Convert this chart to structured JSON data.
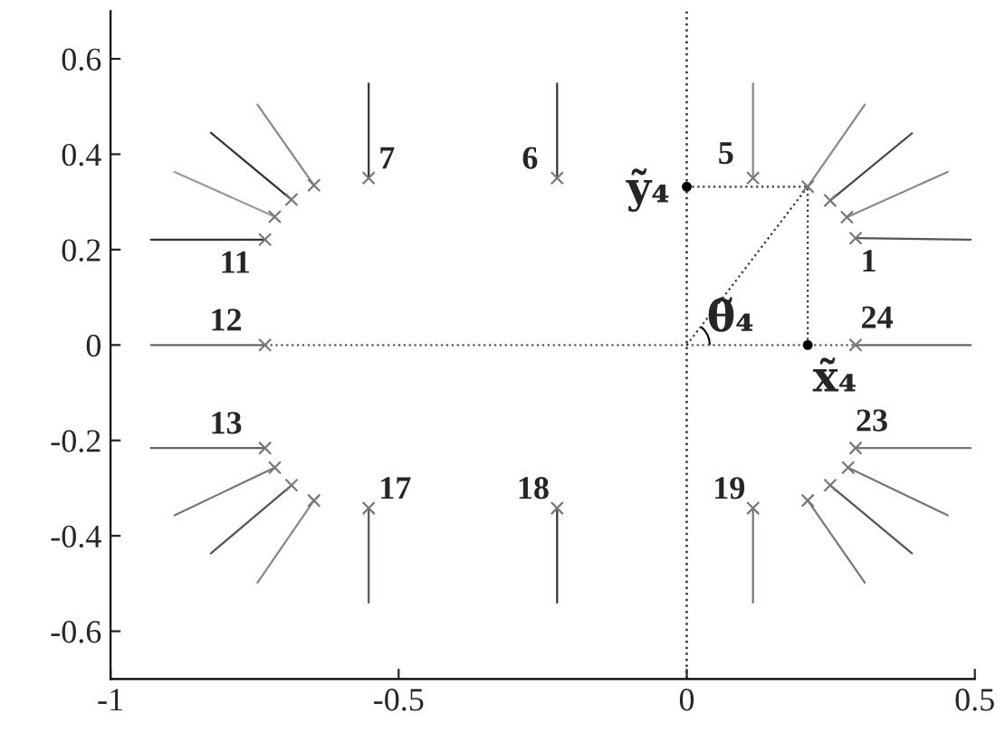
{
  "chart_data": {
    "type": "scatter",
    "xlim": [
      -1,
      0.5
    ],
    "ylim": [
      -0.7,
      0.7
    ],
    "xticks": [
      -1,
      -0.5,
      0,
      0.5
    ],
    "yticks": [
      -0.6,
      -0.4,
      -0.2,
      0,
      0.2,
      0.4,
      0.6
    ],
    "grid": false,
    "legend": false,
    "ref_lines": [
      {
        "axis": "x",
        "value": 0,
        "line_style": "dotted",
        "color": "#333333"
      }
    ],
    "annotations": [
      {
        "text": "ỹ₄",
        "x": 0,
        "y": 0.332
      },
      {
        "text": "x̃₄",
        "x": 0.21,
        "y": 0
      },
      {
        "text": "θ̃₄",
        "x": 0,
        "y": 0
      },
      {
        "text": "1",
        "x": 0.293,
        "y": 0.224
      },
      {
        "text": "5",
        "x": 0.115,
        "y": 0.35
      },
      {
        "text": "6",
        "x": -0.225,
        "y": 0.35
      },
      {
        "text": "7",
        "x": -0.552,
        "y": 0.35
      },
      {
        "text": "11",
        "x": -0.732,
        "y": 0.221
      },
      {
        "text": "12",
        "x": -0.732,
        "y": 0
      },
      {
        "text": "13",
        "x": -0.732,
        "y": -0.216
      },
      {
        "text": "17",
        "x": -0.552,
        "y": -0.342
      },
      {
        "text": "18",
        "x": -0.225,
        "y": -0.342
      },
      {
        "text": "19",
        "x": 0.115,
        "y": -0.342
      },
      {
        "text": "23",
        "x": 0.293,
        "y": -0.216
      },
      {
        "text": "24",
        "x": 0.293,
        "y": 0
      }
    ],
    "series": [
      {
        "type": "line",
        "color": "#555555",
        "x": [
          0.293,
          0.493
        ],
        "values": [
          0.224,
          0.221
        ]
      },
      {
        "type": "line",
        "color": "#888888",
        "x": [
          0.278,
          0.453
        ],
        "values": [
          0.268,
          0.363
        ]
      },
      {
        "type": "line",
        "color": "#444444",
        "x": [
          0.249,
          0.391
        ],
        "values": [
          0.303,
          0.444
        ]
      },
      {
        "type": "line",
        "color": "#888888",
        "x": [
          0.21,
          0.309
        ],
        "values": [
          0.332,
          0.504
        ]
      },
      {
        "type": "line",
        "color": "#888888",
        "x": [
          0.115,
          0.115
        ],
        "values": [
          0.35,
          0.548
        ]
      },
      {
        "type": "line",
        "color": "#333333",
        "x": [
          -0.225,
          -0.225
        ],
        "values": [
          0.35,
          0.548
        ]
      },
      {
        "type": "line",
        "color": "#333333",
        "x": [
          -0.552,
          -0.552
        ],
        "values": [
          0.35,
          0.548
        ]
      },
      {
        "type": "line",
        "color": "#888888",
        "x": [
          -0.647,
          -0.745
        ],
        "values": [
          0.335,
          0.504
        ]
      },
      {
        "type": "line",
        "color": "#333333",
        "x": [
          -0.686,
          -0.826
        ],
        "values": [
          0.305,
          0.445
        ]
      },
      {
        "type": "line",
        "color": "#999999",
        "x": [
          -0.715,
          -0.889
        ],
        "values": [
          0.269,
          0.363
        ]
      },
      {
        "type": "line",
        "color": "#333333",
        "x": [
          -0.732,
          -0.93
        ],
        "values": [
          0.221,
          0.221
        ]
      },
      {
        "type": "line",
        "color": "#666666",
        "x": [
          -0.732,
          -0.93
        ],
        "values": [
          0,
          0
        ]
      },
      {
        "type": "line",
        "color": "#666666",
        "x": [
          -0.732,
          -0.93
        ],
        "values": [
          -0.216,
          -0.216
        ]
      },
      {
        "type": "line",
        "color": "#777777",
        "x": [
          -0.715,
          -0.889
        ],
        "values": [
          -0.257,
          -0.357
        ]
      },
      {
        "type": "line",
        "color": "#555555",
        "x": [
          -0.686,
          -0.826
        ],
        "values": [
          -0.294,
          -0.437
        ]
      },
      {
        "type": "line",
        "color": "#888888",
        "x": [
          -0.647,
          -0.745
        ],
        "values": [
          -0.326,
          -0.498
        ]
      },
      {
        "type": "line",
        "color": "#555555",
        "x": [
          -0.552,
          -0.552
        ],
        "values": [
          -0.342,
          -0.54
        ]
      },
      {
        "type": "line",
        "color": "#333333",
        "x": [
          -0.225,
          -0.225
        ],
        "values": [
          -0.342,
          -0.54
        ]
      },
      {
        "type": "line",
        "color": "#777777",
        "x": [
          0.115,
          0.115
        ],
        "values": [
          -0.342,
          -0.54
        ]
      },
      {
        "type": "line",
        "color": "#777777",
        "x": [
          0.21,
          0.309
        ],
        "values": [
          -0.326,
          -0.498
        ]
      },
      {
        "type": "line",
        "color": "#555555",
        "x": [
          0.249,
          0.391
        ],
        "values": [
          -0.294,
          -0.437
        ]
      },
      {
        "type": "line",
        "color": "#777777",
        "x": [
          0.28,
          0.453
        ],
        "values": [
          -0.257,
          -0.357
        ]
      },
      {
        "type": "line",
        "color": "#777777",
        "x": [
          0.293,
          0.493
        ],
        "values": [
          -0.216,
          -0.216
        ]
      },
      {
        "type": "line",
        "color": "#666666",
        "x": [
          0.293,
          0.493
        ],
        "values": [
          0,
          0
        ]
      },
      {
        "type": "line",
        "color": "#555555",
        "line_style": "dotted",
        "x": [
          -0.732,
          0.293
        ],
        "values": [
          0,
          0
        ]
      },
      {
        "type": "line",
        "color": "#333333",
        "line_style": "dotted",
        "x": [
          0,
          0.21
        ],
        "values": [
          0.332,
          0.332
        ]
      },
      {
        "type": "line",
        "color": "#333333",
        "line_style": "dotted",
        "x": [
          0.21,
          0.21
        ],
        "values": [
          0,
          0.332
        ]
      },
      {
        "type": "line",
        "color": "#333333",
        "line_style": "dotted",
        "x": [
          0,
          0.21
        ],
        "values": [
          0,
          0.332
        ]
      },
      {
        "marker": "cross",
        "color": "#777777",
        "x": [
          0.293,
          0.278,
          0.249,
          0.21,
          0.115,
          -0.225,
          -0.552,
          -0.647,
          -0.686,
          -0.715,
          -0.732,
          -0.732,
          -0.732,
          -0.715,
          -0.686,
          -0.647,
          -0.552,
          -0.225,
          0.115,
          0.21,
          0.249,
          0.28,
          0.293,
          0.293
        ],
        "values": [
          0.224,
          0.268,
          0.303,
          0.332,
          0.35,
          0.35,
          0.35,
          0.335,
          0.305,
          0.269,
          0.221,
          0,
          -0.216,
          -0.257,
          -0.294,
          -0.326,
          -0.342,
          -0.342,
          -0.342,
          -0.326,
          -0.294,
          -0.257,
          -0.216,
          0
        ]
      },
      {
        "type": "scatter",
        "marker": "circle",
        "color": "#000000",
        "x": [
          0,
          0.21
        ],
        "values": [
          0.332,
          0
        ]
      }
    ]
  }
}
